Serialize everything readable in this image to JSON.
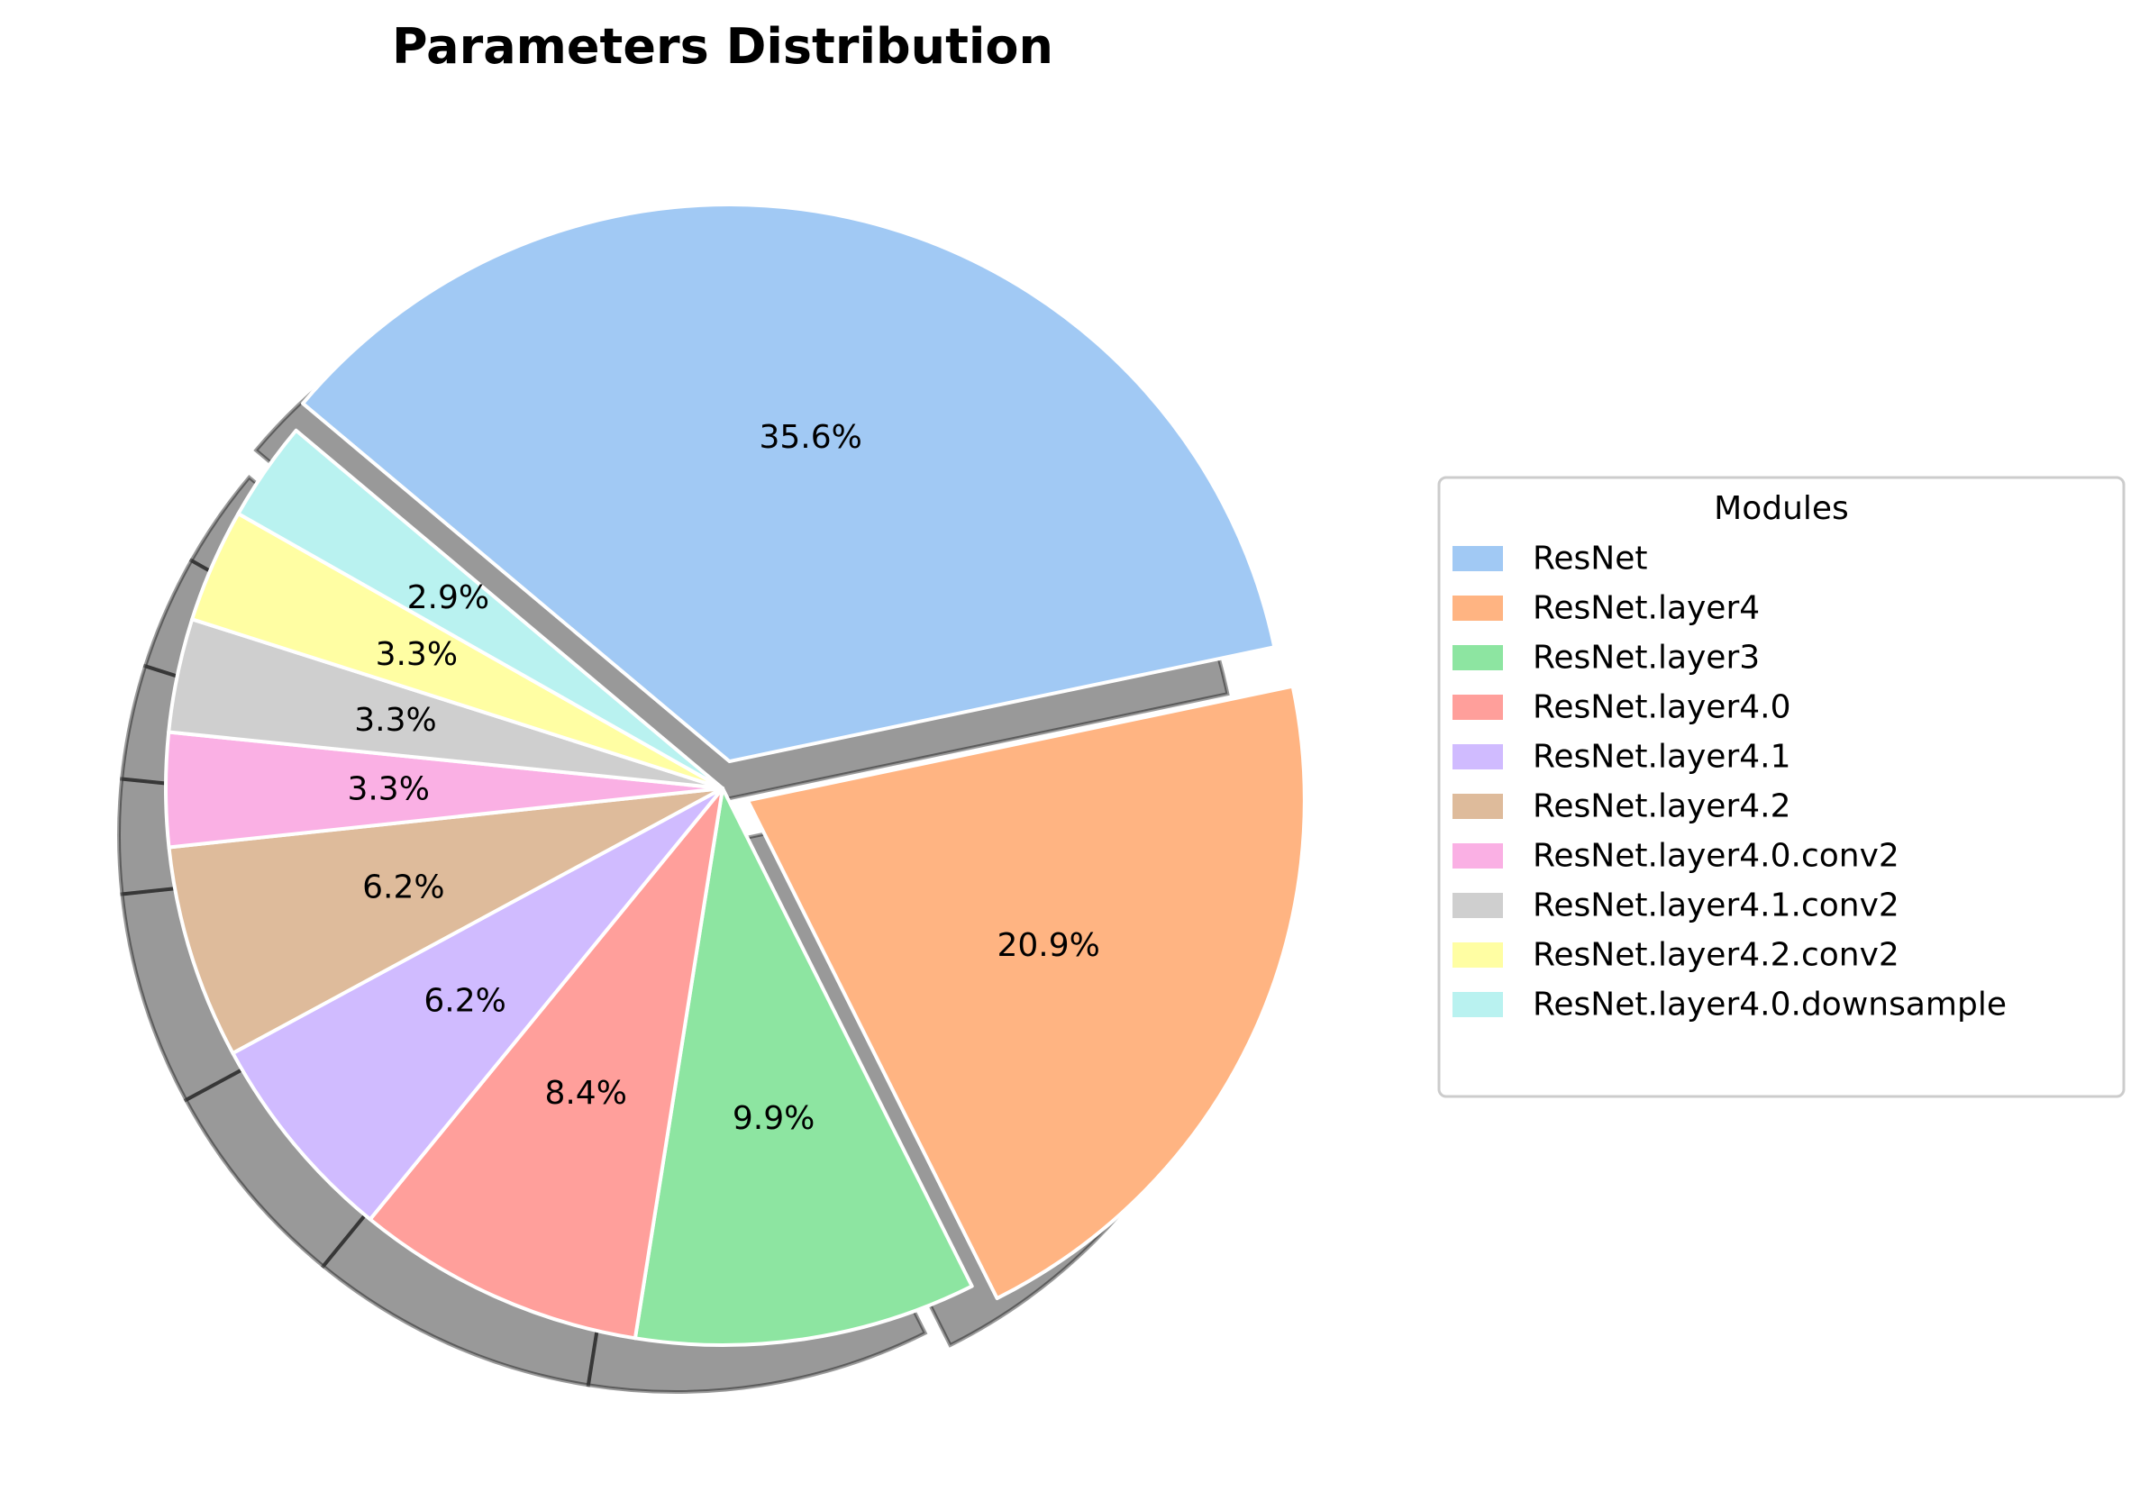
{
  "chart_data": {
    "type": "pie",
    "title": "Parameters Distribution",
    "categories": [
      "ResNet",
      "ResNet.layer4",
      "ResNet.layer3",
      "ResNet.layer4.0",
      "ResNet.layer4.1",
      "ResNet.layer4.2",
      "ResNet.layer4.0.conv2",
      "ResNet.layer4.1.conv2",
      "ResNet.layer4.2.conv2",
      "ResNet.layer4.0.downsample"
    ],
    "values": [
      35.6,
      20.9,
      9.9,
      8.4,
      6.2,
      6.2,
      3.3,
      3.3,
      3.3,
      2.9
    ],
    "labels": [
      "35.6%",
      "20.9%",
      "9.9%",
      "8.4%",
      "6.2%",
      "6.2%",
      "3.3%",
      "3.3%",
      "3.3%",
      "2.9%"
    ],
    "colors": [
      "#a1c9f4",
      "#ffb482",
      "#8de5a1",
      "#ff9f9b",
      "#d0bbff",
      "#debb9b",
      "#fab0e4",
      "#cfcfcf",
      "#fffea3",
      "#b9f2f0"
    ],
    "start_angle_deg": 140,
    "direction": "clockwise",
    "explode": [
      0.05,
      0.05,
      0,
      0,
      0,
      0,
      0,
      0,
      0,
      0
    ],
    "shadow": true,
    "edge_color": "#ffffff",
    "legend": {
      "title": "Modules",
      "placement": "center-right"
    }
  }
}
